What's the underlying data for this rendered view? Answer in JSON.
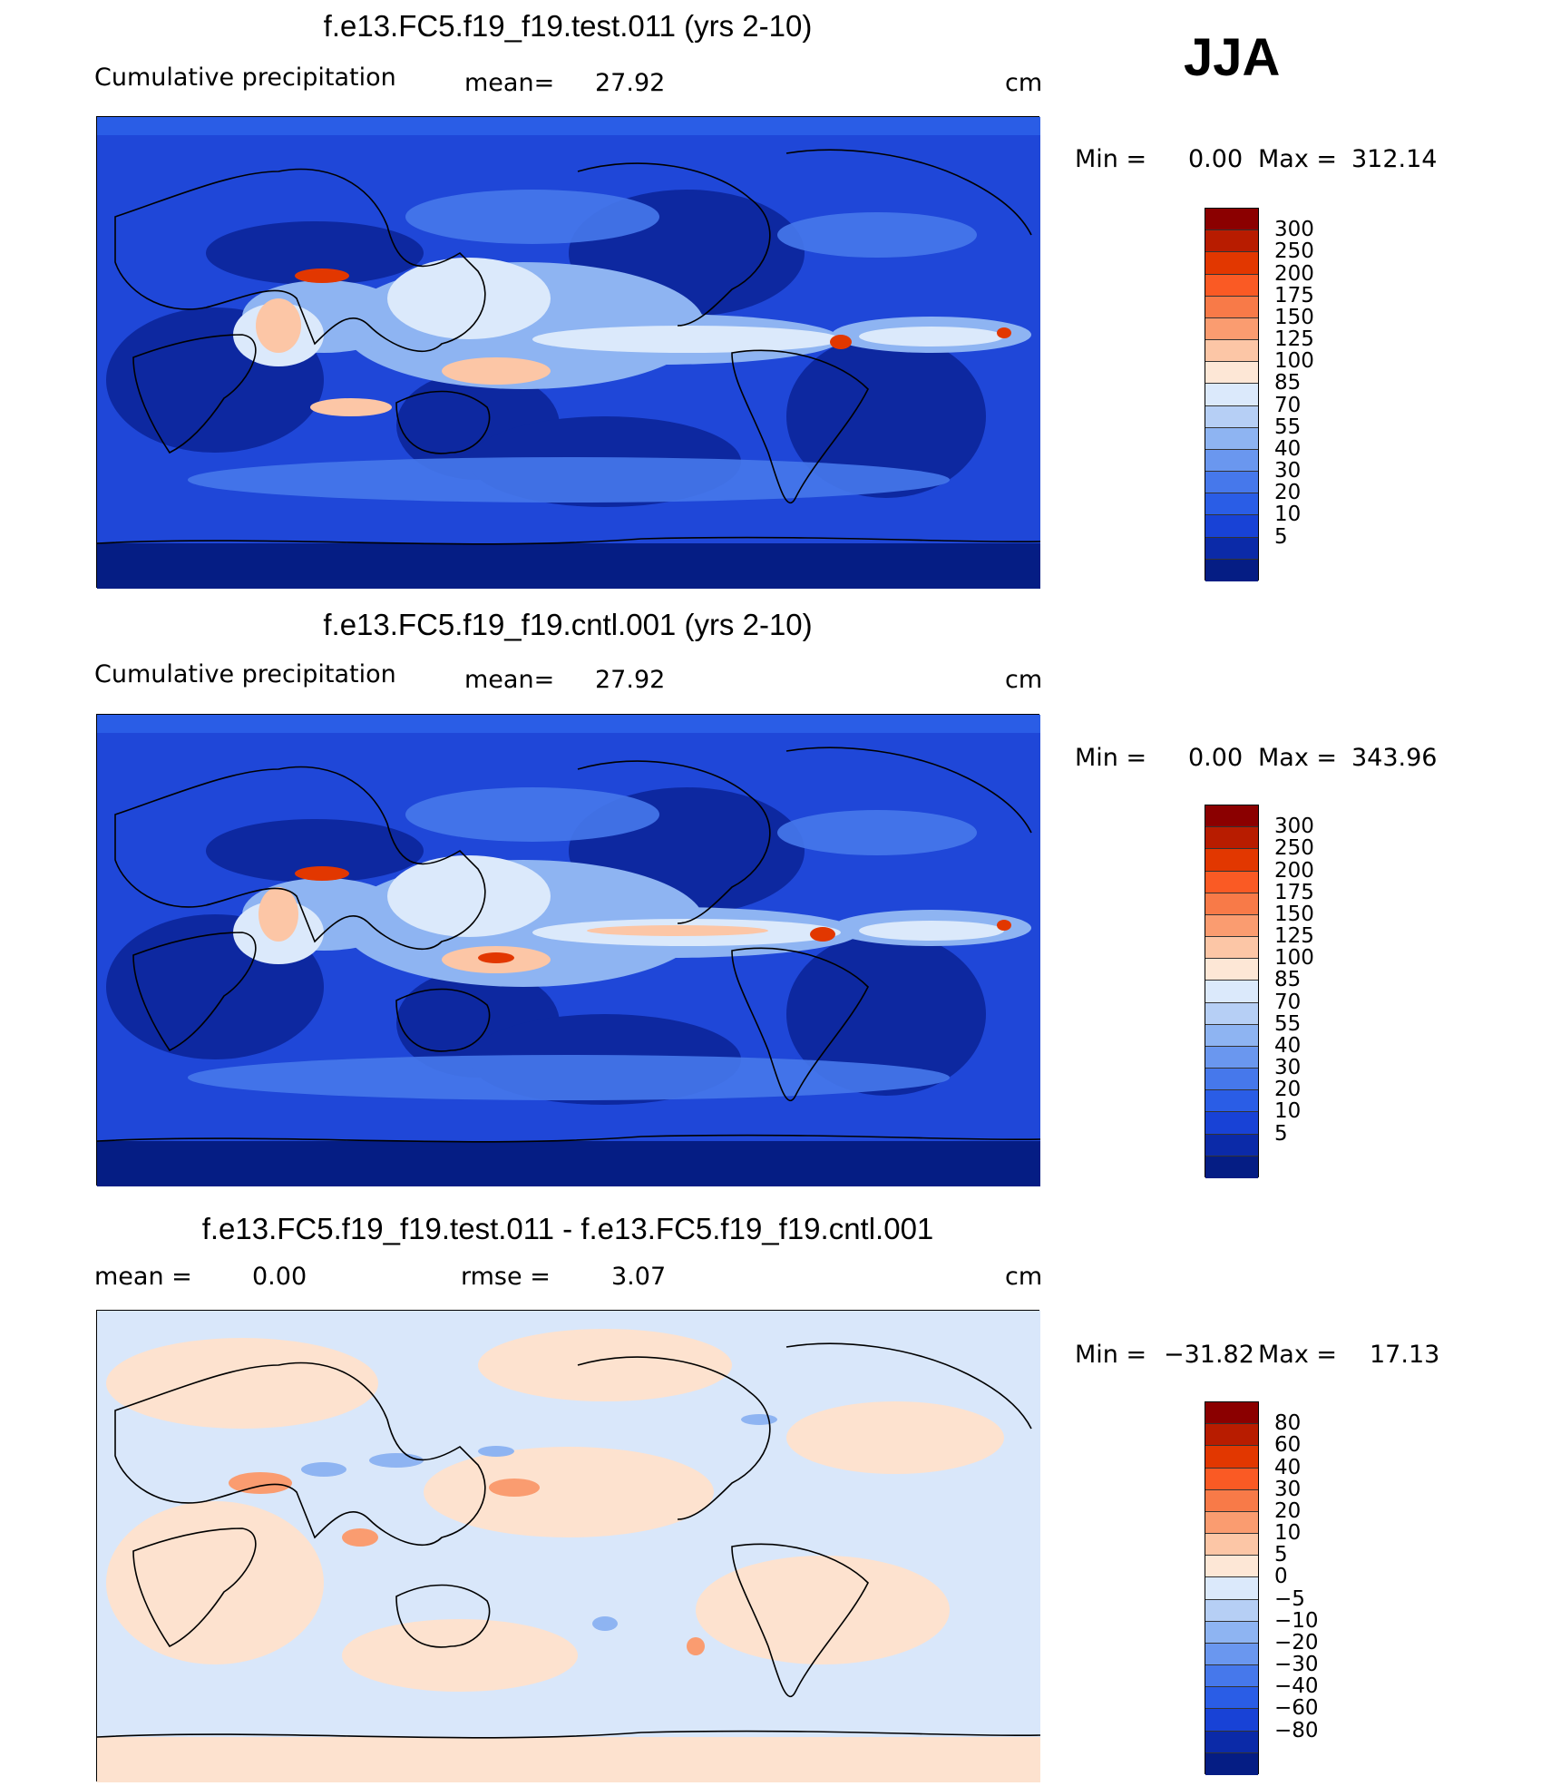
{
  "season": "JJA",
  "units_label": "cm",
  "panels": [
    {
      "id": "test",
      "title": "f.e13.FC5.f19_f19.test.011 (yrs 2-10)",
      "variable": "Cumulative precipitation",
      "mean_label": "mean=",
      "mean_value": "27.92",
      "min_label": "Min =",
      "min_value": "0.00",
      "max_label": "Max =",
      "max_value": "312.14"
    },
    {
      "id": "cntl",
      "title": "f.e13.FC5.f19_f19.cntl.001 (yrs 2-10)",
      "variable": "Cumulative precipitation",
      "mean_label": "mean=",
      "mean_value": "27.92",
      "min_label": "Min =",
      "min_value": "0.00",
      "max_label": "Max =",
      "max_value": "343.96"
    },
    {
      "id": "diff",
      "title": "f.e13.FC5.f19_f19.test.011 - f.e13.FC5.f19_f19.cntl.001",
      "mean_label": "mean =",
      "mean_value": "0.00",
      "rmse_label": "rmse =",
      "rmse_value": "3.07",
      "min_label": "Min =",
      "min_value": "−31.82",
      "max_label": "Max =",
      "max_value": "17.13"
    }
  ],
  "colorbar_abs": {
    "labels": [
      "300",
      "250",
      "200",
      "175",
      "150",
      "125",
      "100",
      "85",
      "70",
      "55",
      "40",
      "30",
      "20",
      "10",
      "5"
    ],
    "colors": [
      "#8b0000",
      "#b81c00",
      "#e23700",
      "#fa5a24",
      "#f87a48",
      "#fa9c70",
      "#fcc6a6",
      "#fde7d6",
      "#dbe9fb",
      "#b6cff5",
      "#8eb4f2",
      "#6a97ef",
      "#4678eb",
      "#2a5de6",
      "#1842d6",
      "#0b2aa8",
      "#051d84"
    ]
  },
  "colorbar_diff": {
    "labels": [
      "80",
      "60",
      "40",
      "30",
      "20",
      "10",
      "5",
      "0",
      "−5",
      "−10",
      "−20",
      "−30",
      "−40",
      "−60",
      "−80"
    ],
    "colors": [
      "#8b0000",
      "#b81c00",
      "#e23700",
      "#fa5a24",
      "#f87a48",
      "#fa9c70",
      "#fcc6a6",
      "#fde7d6",
      "#dbe9fb",
      "#b6cff5",
      "#8eb4f2",
      "#6a97ef",
      "#4678eb",
      "#2a5de6",
      "#1842d6",
      "#0b2aa8",
      "#051d84"
    ]
  },
  "palette": {
    "ocean_dry": "#1435c9",
    "very_dry": "#0a1f8a",
    "wet": "#fbe3d2",
    "very_wet": "#e23700",
    "diff_pos": "#fde2cf",
    "diff_neg": "#d7e6fb"
  }
}
